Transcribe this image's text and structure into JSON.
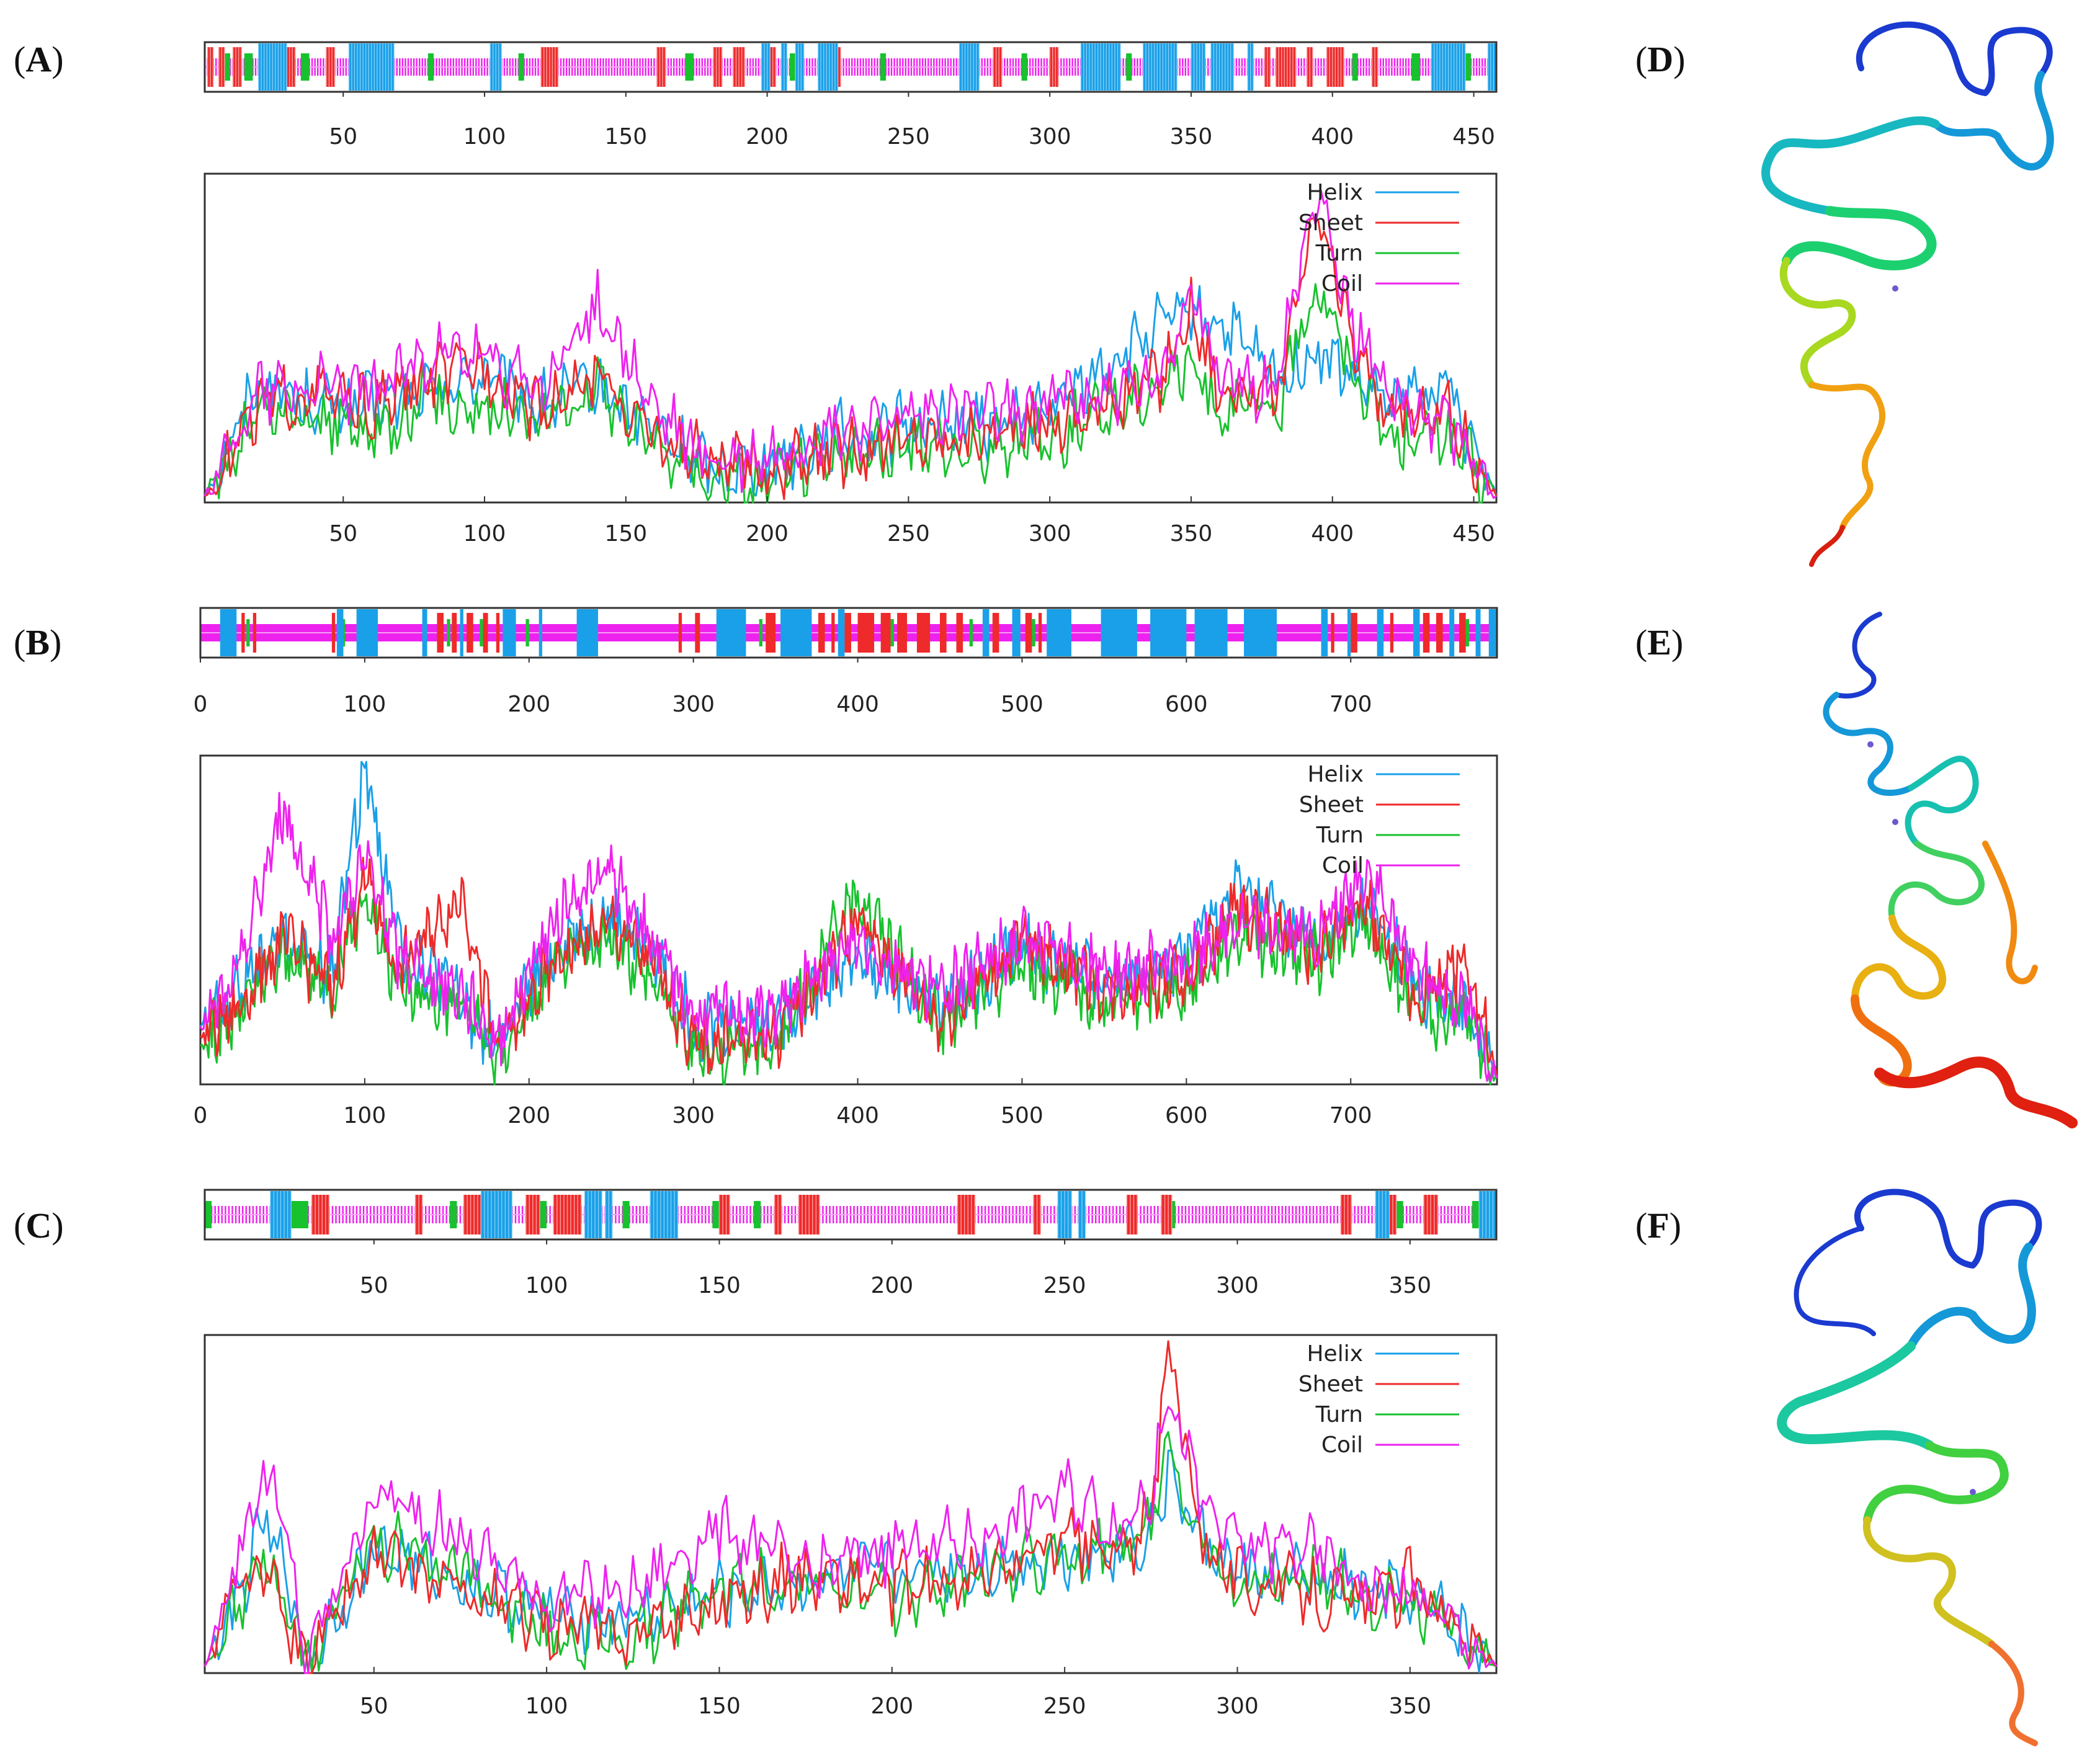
{
  "panels": [
    {
      "id": "A",
      "open": "(",
      "close": ")"
    },
    {
      "id": "B",
      "open": "(",
      "close": ")"
    },
    {
      "id": "C",
      "open": "(",
      "close": ")"
    },
    {
      "id": "D",
      "open": "(",
      "close": ")"
    },
    {
      "id": "E",
      "open": "(",
      "close": ")"
    },
    {
      "id": "F",
      "open": "(",
      "close": ")"
    }
  ],
  "legend": [
    "Helix",
    "Sheet",
    "Turn",
    "Coil"
  ],
  "colors": {
    "Helix": "#1aa0e8",
    "Sheet": "#ee2a2a",
    "Turn": "#18c22e",
    "Coil": "#ee22ee"
  },
  "chart_data": [
    {
      "panel": "A",
      "type": "line",
      "title": "",
      "xlim": [
        1,
        458
      ],
      "xticks": [
        50,
        100,
        150,
        200,
        250,
        300,
        350,
        400,
        450
      ],
      "ylim": [
        0,
        1
      ],
      "series_names": [
        "Helix",
        "Sheet",
        "Turn",
        "Coil"
      ],
      "key_x": [
        1,
        20,
        40,
        60,
        80,
        100,
        120,
        140,
        160,
        180,
        200,
        220,
        240,
        260,
        280,
        300,
        320,
        340,
        350,
        360,
        380,
        395,
        405,
        420,
        440,
        458
      ],
      "series": {
        "Helix": [
          0.02,
          0.38,
          0.3,
          0.3,
          0.34,
          0.4,
          0.3,
          0.36,
          0.22,
          0.1,
          0.12,
          0.2,
          0.22,
          0.25,
          0.24,
          0.28,
          0.42,
          0.55,
          0.58,
          0.56,
          0.38,
          0.46,
          0.4,
          0.3,
          0.36,
          0.02
        ],
        "Sheet": [
          0.02,
          0.3,
          0.34,
          0.28,
          0.38,
          0.42,
          0.28,
          0.4,
          0.2,
          0.12,
          0.1,
          0.14,
          0.18,
          0.2,
          0.22,
          0.25,
          0.3,
          0.4,
          0.6,
          0.35,
          0.32,
          0.9,
          0.55,
          0.25,
          0.3,
          0.02
        ],
        "Turn": [
          0.02,
          0.28,
          0.26,
          0.22,
          0.32,
          0.3,
          0.26,
          0.36,
          0.18,
          0.08,
          0.06,
          0.12,
          0.16,
          0.16,
          0.18,
          0.2,
          0.28,
          0.38,
          0.42,
          0.3,
          0.28,
          0.7,
          0.45,
          0.2,
          0.22,
          0.02
        ],
        "Coil": [
          0.02,
          0.35,
          0.36,
          0.34,
          0.46,
          0.44,
          0.34,
          0.62,
          0.28,
          0.12,
          0.14,
          0.22,
          0.24,
          0.28,
          0.26,
          0.32,
          0.34,
          0.36,
          0.7,
          0.38,
          0.36,
          1.0,
          0.6,
          0.34,
          0.24,
          0.02
        ]
      },
      "band": {
        "helix": [
          [
            20,
            30
          ],
          [
            52,
            68
          ],
          [
            102,
            106
          ],
          [
            198,
            201
          ],
          [
            205,
            207
          ],
          [
            210,
            213
          ],
          [
            218,
            225
          ],
          [
            268,
            275
          ],
          [
            311,
            325
          ],
          [
            333,
            345
          ],
          [
            350,
            355
          ],
          [
            357,
            365
          ],
          [
            370,
            372
          ],
          [
            435,
            447
          ],
          [
            455,
            458
          ]
        ],
        "sheet": [
          [
            2,
            4
          ],
          [
            6,
            8
          ],
          [
            11,
            14
          ],
          [
            29,
            33
          ],
          [
            44,
            47
          ],
          [
            120,
            126
          ],
          [
            161,
            164
          ],
          [
            181,
            184
          ],
          [
            188,
            192
          ],
          [
            200,
            203
          ],
          [
            224,
            226
          ],
          [
            280,
            283
          ],
          [
            300,
            303
          ],
          [
            376,
            378
          ],
          [
            380,
            387
          ],
          [
            391,
            393
          ],
          [
            398,
            404
          ],
          [
            414,
            416
          ]
        ],
        "turn": [
          [
            8,
            10
          ],
          [
            15,
            18
          ],
          [
            35,
            38
          ],
          [
            80,
            82
          ],
          [
            112,
            114
          ],
          [
            171,
            174
          ],
          [
            208,
            210
          ],
          [
            240,
            242
          ],
          [
            290,
            292
          ],
          [
            327,
            329
          ],
          [
            407,
            409
          ],
          [
            428,
            431
          ],
          [
            446,
            449
          ]
        ],
        "coil_dense": true
      }
    },
    {
      "panel": "B",
      "type": "line",
      "title": "",
      "xlim": [
        0,
        789
      ],
      "xticks": [
        0,
        100,
        200,
        300,
        400,
        500,
        600,
        700
      ],
      "ylim": [
        0,
        1
      ],
      "series_names": [
        "Helix",
        "Sheet",
        "Turn",
        "Coil"
      ],
      "key_x": [
        0,
        20,
        50,
        80,
        100,
        120,
        160,
        180,
        220,
        250,
        280,
        300,
        350,
        400,
        450,
        500,
        550,
        600,
        630,
        680,
        710,
        740,
        770,
        789
      ],
      "series": {
        "Helix": [
          0.18,
          0.28,
          0.45,
          0.35,
          1.0,
          0.45,
          0.25,
          0.12,
          0.45,
          0.52,
          0.38,
          0.18,
          0.2,
          0.4,
          0.24,
          0.42,
          0.32,
          0.4,
          0.62,
          0.42,
          0.55,
          0.3,
          0.22,
          0.02
        ],
        "Sheet": [
          0.15,
          0.22,
          0.45,
          0.3,
          0.65,
          0.35,
          0.6,
          0.1,
          0.4,
          0.5,
          0.35,
          0.12,
          0.15,
          0.5,
          0.2,
          0.45,
          0.3,
          0.32,
          0.55,
          0.4,
          0.55,
          0.25,
          0.4,
          0.02
        ],
        "Turn": [
          0.12,
          0.2,
          0.4,
          0.3,
          0.6,
          0.3,
          0.25,
          0.08,
          0.38,
          0.45,
          0.3,
          0.1,
          0.12,
          0.6,
          0.18,
          0.38,
          0.25,
          0.3,
          0.48,
          0.38,
          0.5,
          0.22,
          0.2,
          0.02
        ],
        "Coil": [
          0.18,
          0.3,
          0.85,
          0.45,
          0.7,
          0.4,
          0.28,
          0.14,
          0.55,
          0.65,
          0.4,
          0.22,
          0.22,
          0.45,
          0.28,
          0.45,
          0.35,
          0.38,
          0.5,
          0.45,
          0.65,
          0.35,
          0.25,
          0.02
        ]
      },
      "band": {
        "helix": [
          [
            12,
            22
          ],
          [
            83,
            87
          ],
          [
            95,
            108
          ],
          [
            135,
            138
          ],
          [
            158,
            160
          ],
          [
            184,
            192
          ],
          [
            206,
            208
          ],
          [
            229,
            242
          ],
          [
            314,
            332
          ],
          [
            353,
            372
          ],
          [
            388,
            392
          ],
          [
            476,
            480
          ],
          [
            494,
            499
          ],
          [
            515,
            530
          ],
          [
            548,
            570
          ],
          [
            578,
            600
          ],
          [
            605,
            625
          ],
          [
            635,
            655
          ],
          [
            682,
            686
          ],
          [
            698,
            700
          ],
          [
            716,
            720
          ],
          [
            738,
            742
          ],
          [
            760,
            763
          ],
          [
            776,
            779
          ],
          [
            784,
            789
          ]
        ],
        "sheet": [
          [
            25,
            27
          ],
          [
            32,
            34
          ],
          [
            80,
            82
          ],
          [
            144,
            148
          ],
          [
            153,
            156
          ],
          [
            162,
            166
          ],
          [
            172,
            175
          ],
          [
            180,
            182
          ],
          [
            291,
            293
          ],
          [
            301,
            304
          ],
          [
            344,
            350
          ],
          [
            376,
            380
          ],
          [
            384,
            386
          ],
          [
            392,
            396
          ],
          [
            400,
            410
          ],
          [
            414,
            420
          ],
          [
            424,
            430
          ],
          [
            436,
            444
          ],
          [
            450,
            454
          ],
          [
            460,
            464
          ],
          [
            482,
            486
          ],
          [
            502,
            506
          ],
          [
            510,
            512
          ],
          [
            688,
            690
          ],
          [
            700,
            704
          ],
          [
            724,
            726
          ],
          [
            744,
            748
          ],
          [
            752,
            756
          ],
          [
            766,
            770
          ]
        ],
        "turn": [
          [
            28,
            30
          ],
          [
            86,
            88
          ],
          [
            150,
            152
          ],
          [
            170,
            172
          ],
          [
            198,
            200
          ],
          [
            340,
            342
          ],
          [
            420,
            422
          ],
          [
            468,
            470
          ],
          [
            506,
            508
          ],
          [
            740,
            742
          ],
          [
            770,
            772
          ]
        ],
        "coil_dense": false
      }
    },
    {
      "panel": "C",
      "type": "line",
      "title": "",
      "xlim": [
        1,
        375
      ],
      "xticks": [
        50,
        100,
        150,
        200,
        250,
        300,
        350
      ],
      "ylim": [
        0,
        1
      ],
      "series_names": [
        "Helix",
        "Sheet",
        "Turn",
        "Coil"
      ],
      "key_x": [
        1,
        10,
        18,
        25,
        30,
        50,
        75,
        100,
        125,
        150,
        175,
        200,
        225,
        250,
        265,
        275,
        280,
        290,
        300,
        320,
        340,
        350,
        360,
        375
      ],
      "series": {
        "Helix": [
          0.02,
          0.2,
          0.45,
          0.3,
          0.02,
          0.38,
          0.28,
          0.18,
          0.16,
          0.24,
          0.28,
          0.3,
          0.32,
          0.36,
          0.38,
          0.42,
          0.6,
          0.4,
          0.3,
          0.28,
          0.24,
          0.22,
          0.16,
          0.02
        ],
        "Sheet": [
          0.02,
          0.25,
          0.3,
          0.15,
          0.02,
          0.35,
          0.25,
          0.15,
          0.12,
          0.22,
          0.3,
          0.25,
          0.28,
          0.4,
          0.35,
          0.45,
          0.98,
          0.42,
          0.28,
          0.25,
          0.2,
          0.28,
          0.2,
          0.02
        ],
        "Turn": [
          0.02,
          0.18,
          0.35,
          0.2,
          0.02,
          0.4,
          0.3,
          0.12,
          0.1,
          0.26,
          0.28,
          0.22,
          0.3,
          0.35,
          0.36,
          0.42,
          0.72,
          0.38,
          0.26,
          0.3,
          0.22,
          0.2,
          0.15,
          0.02
        ],
        "Coil": [
          0.02,
          0.35,
          0.6,
          0.4,
          0.02,
          0.55,
          0.4,
          0.22,
          0.24,
          0.45,
          0.3,
          0.38,
          0.4,
          0.55,
          0.45,
          0.55,
          0.85,
          0.5,
          0.38,
          0.38,
          0.25,
          0.24,
          0.16,
          0.02
        ]
      },
      "band": {
        "helix": [
          [
            20,
            26
          ],
          [
            81,
            90
          ],
          [
            111,
            116
          ],
          [
            117,
            119
          ],
          [
            130,
            138
          ],
          [
            248,
            252
          ],
          [
            254,
            256
          ],
          [
            340,
            344
          ],
          [
            370,
            375
          ]
        ],
        "sheet": [
          [
            32,
            37
          ],
          [
            62,
            64
          ],
          [
            76,
            81
          ],
          [
            94,
            98
          ],
          [
            102,
            110
          ],
          [
            150,
            153
          ],
          [
            166,
            168
          ],
          [
            173,
            179
          ],
          [
            219,
            224
          ],
          [
            241,
            243
          ],
          [
            268,
            271
          ],
          [
            278,
            281
          ],
          [
            330,
            333
          ],
          [
            344,
            346
          ],
          [
            354,
            358
          ]
        ],
        "turn": [
          [
            1,
            3
          ],
          [
            26,
            31
          ],
          [
            72,
            74
          ],
          [
            98,
            100
          ],
          [
            122,
            124
          ],
          [
            148,
            150
          ],
          [
            160,
            162
          ],
          [
            280,
            282
          ],
          [
            346,
            348
          ],
          [
            368,
            370
          ]
        ],
        "coil_dense": true
      }
    }
  ]
}
